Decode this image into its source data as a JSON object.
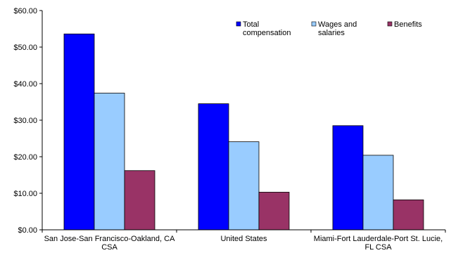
{
  "chart_data": {
    "type": "bar",
    "title": "",
    "xlabel": "",
    "ylabel": "",
    "ylim": [
      0,
      60
    ],
    "y_ticks": [
      "$0.00",
      "$10.00",
      "$20.00",
      "$30.00",
      "$40.00",
      "$50.00",
      "$60.00"
    ],
    "y_tick_values": [
      0,
      10,
      20,
      30,
      40,
      50,
      60
    ],
    "categories": [
      [
        "San Jose-San Francisco-Oakland, CA",
        "CSA"
      ],
      [
        "United States"
      ],
      [
        "Miami-Fort Lauderdale-Port St. Lucie,",
        "FL CSA"
      ]
    ],
    "series": [
      {
        "name": [
          "Total",
          "compensation"
        ],
        "color": "#0000ff",
        "values": [
          53.6,
          34.5,
          28.5
        ]
      },
      {
        "name": [
          "Wages and",
          "salaries"
        ],
        "color": "#99ccff",
        "values": [
          37.4,
          24.1,
          20.4
        ]
      },
      {
        "name": [
          "Benefits"
        ],
        "color": "#993366",
        "values": [
          16.2,
          10.3,
          8.2
        ]
      }
    ],
    "grid": false,
    "legend_position": "top-right"
  }
}
